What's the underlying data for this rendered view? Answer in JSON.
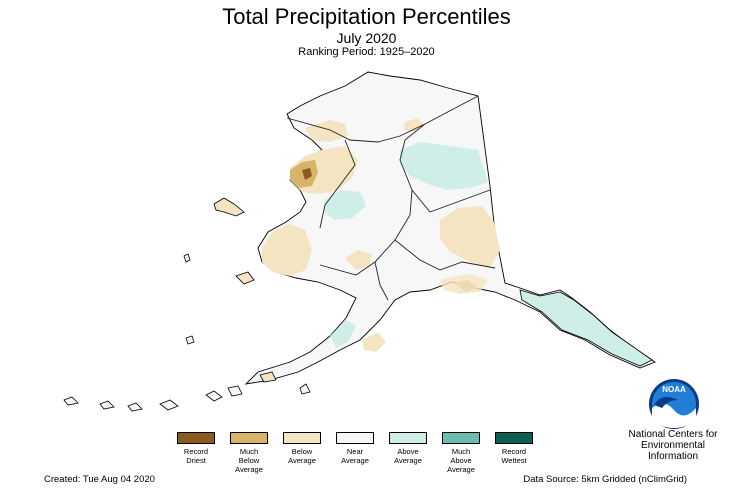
{
  "header": {
    "title": "Total Precipitation Percentiles",
    "subtitle": "July 2020",
    "ranking_period": "Ranking Period: 1925–2020"
  },
  "legend": [
    {
      "label": "Record\nDriest",
      "color": "#8b5a1e"
    },
    {
      "label": "Much\nBelow\nAverage",
      "color": "#d8b36a"
    },
    {
      "label": "Below\nAverage",
      "color": "#f4e4c2"
    },
    {
      "label": "Near\nAverage",
      "color": "#f7f7f7"
    },
    {
      "label": "Above\nAverage",
      "color": "#cfeee7"
    },
    {
      "label": "Much\nAbove\nAverage",
      "color": "#69bfae"
    },
    {
      "label": "Record\nWettest",
      "color": "#0c5f52"
    }
  ],
  "footer": {
    "created": "Created: Tue Aug 04 2020",
    "source": "Data Source: 5km Gridded (nClimGrid)"
  },
  "branding": {
    "logo_text": "NOAA",
    "org_name": "National Centers for\nEnvironmental\nInformation"
  }
}
